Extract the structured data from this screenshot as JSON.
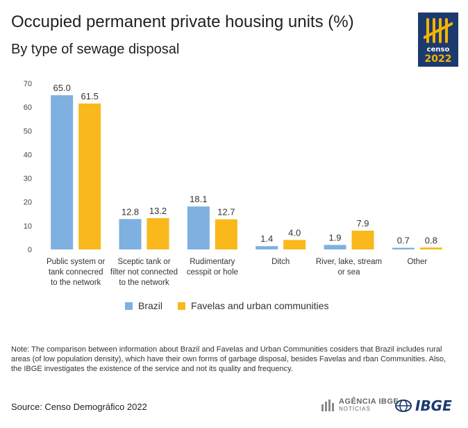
{
  "header": {
    "title": "Occupied permanent private housing units (%)",
    "subtitle": "By type of sewage disposal"
  },
  "logo": {
    "line1": "censo",
    "line2": "2022",
    "background_color": "#1d3a6e",
    "accent_color": "#f5b400"
  },
  "chart_data": {
    "type": "bar",
    "categories": [
      [
        "Public system or",
        "tank connecred",
        "to the network"
      ],
      [
        "Sceptic tank or",
        "filter not connected",
        "to the network"
      ],
      [
        "Rudimentary",
        "cesspit or hole"
      ],
      [
        "Ditch"
      ],
      [
        "River, lake, stream",
        "or sea"
      ],
      [
        "Other"
      ]
    ],
    "series": [
      {
        "name": "Brazil",
        "color": "#7eb0e0",
        "values": [
          65.0,
          12.8,
          18.1,
          1.4,
          1.9,
          0.7
        ],
        "labels": [
          "65.0",
          "12.8",
          "18.1",
          "1.4",
          "1.9",
          "0.7"
        ]
      },
      {
        "name": "Favelas and urban communities",
        "color": "#f9b81b",
        "values": [
          61.5,
          13.2,
          12.7,
          4.0,
          7.9,
          0.8
        ],
        "labels": [
          "61.5",
          "13.2",
          "12.7",
          "4.0",
          "7.9",
          "0.8"
        ]
      }
    ],
    "ylim": [
      0,
      70
    ],
    "yticks": [
      "0",
      "10",
      "20",
      "30",
      "40",
      "50",
      "60",
      "70"
    ],
    "grid": false,
    "legend_position": "bottom"
  },
  "legend": {
    "items": [
      {
        "label": "Brazil",
        "color": "#7eb0e0"
      },
      {
        "label": "Favelas and urban communities",
        "color": "#f9b81b"
      }
    ]
  },
  "note": "Note: The comparison between information  about Brazil and Favelas and Urban Communities cosiders that Brazil includes rural areas (of low population density), which have their own forms of garbage disposal, besides Favelas and rban Communities. Also, the IBGE investigates the existence of the service and not its quality and frequency.",
  "footer": {
    "source": "Source: Censo Demográfico 2022",
    "agencia_line1": "AGÊNCIA IBGE",
    "agencia_line2": "NOTÍCIAS",
    "ibge_logo": "IBGE"
  }
}
